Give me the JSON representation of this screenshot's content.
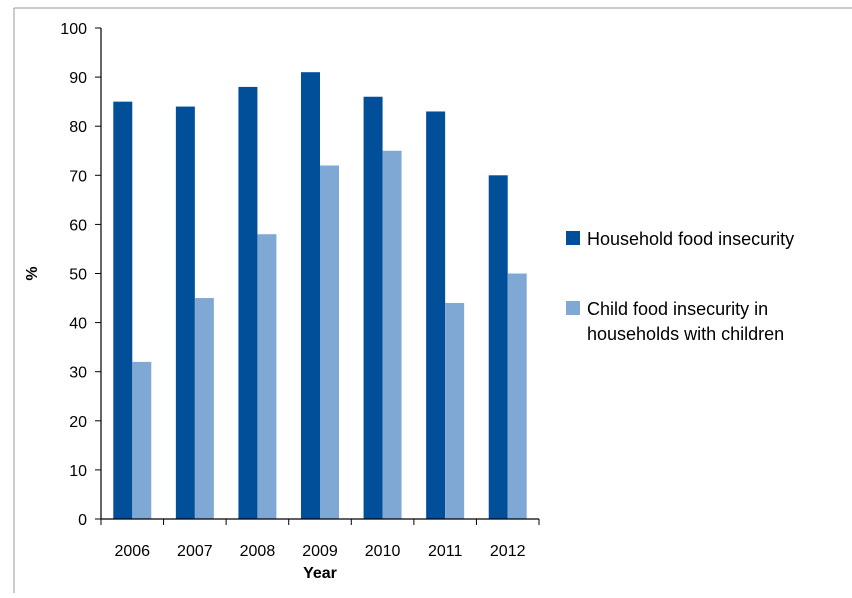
{
  "chart_data": {
    "type": "bar",
    "categories": [
      "2006",
      "2007",
      "2008",
      "2009",
      "2010",
      "2011",
      "2012"
    ],
    "series": [
      {
        "name": "Household food insecurity",
        "values": [
          85,
          84,
          88,
          91,
          86,
          83,
          70
        ],
        "color": "#004f98"
      },
      {
        "name": "Child food insecurity in households with children",
        "values": [
          32,
          45,
          58,
          72,
          75,
          44,
          50
        ],
        "color": "#7fa8d4"
      }
    ],
    "xlabel": "Year",
    "ylabel": "%",
    "ylim": [
      0,
      100
    ],
    "yticks": [
      0,
      10,
      20,
      30,
      40,
      50,
      60,
      70,
      80,
      90,
      100
    ],
    "grid": false,
    "legend_position": "right",
    "legend": {
      "entries": [
        {
          "lines": [
            "Household food insecurity"
          ],
          "color": "#004f98"
        },
        {
          "lines": [
            "Child food insecurity in",
            "households with children"
          ],
          "color": "#7fa8d4"
        }
      ]
    }
  }
}
